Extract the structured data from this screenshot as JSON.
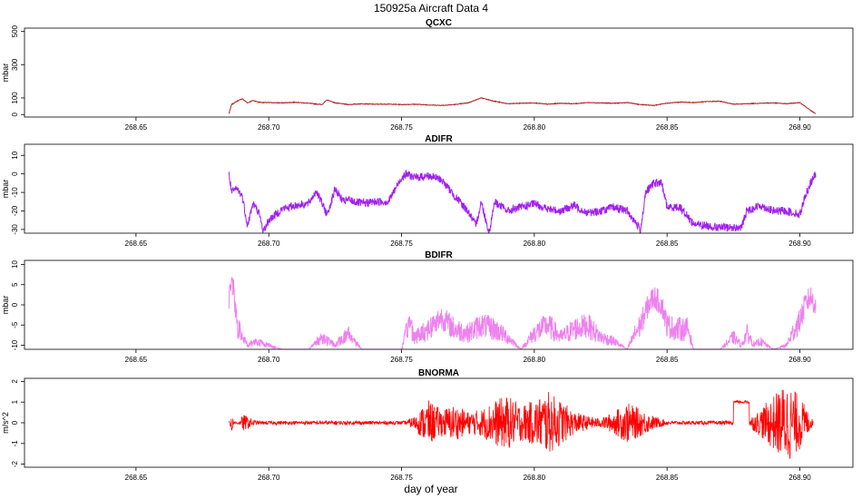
{
  "page_title": "150925a   Aircraft Data 4",
  "xlabel": "day of year",
  "x_ticks": [
    "268.65",
    "268.70",
    "268.75",
    "268.80",
    "268.85",
    "268.90"
  ],
  "chart_data": [
    {
      "type": "line",
      "title": "QCXC",
      "ylabel": "mbar",
      "xlim": [
        268.608,
        268.92
      ],
      "ylim": [
        -15,
        520
      ],
      "yticks": [
        "0",
        "100",
        "300",
        "500"
      ],
      "color": "#b22222",
      "series": [
        {
          "x": [
            268.685,
            268.686,
            268.688,
            268.69,
            268.692,
            268.694,
            268.696,
            268.698,
            268.7,
            268.705,
            268.71,
            268.715,
            268.72,
            268.722,
            268.725,
            268.73,
            268.735,
            268.74,
            268.745,
            268.75,
            268.755,
            268.76,
            268.765,
            268.77,
            268.775,
            268.78,
            268.785,
            268.79,
            268.795,
            268.8,
            268.805,
            268.81,
            268.815,
            268.82,
            268.825,
            268.83,
            268.835,
            268.84,
            268.845,
            268.85,
            268.855,
            268.86,
            268.865,
            268.87,
            268.875,
            268.88,
            268.885,
            268.89,
            268.895,
            268.9,
            268.902,
            268.904,
            268.906
          ],
          "y": [
            5,
            60,
            80,
            95,
            70,
            85,
            75,
            72,
            72,
            70,
            74,
            68,
            60,
            88,
            70,
            60,
            65,
            62,
            63,
            60,
            62,
            58,
            55,
            60,
            70,
            100,
            80,
            65,
            68,
            70,
            62,
            68,
            65,
            72,
            70,
            68,
            72,
            60,
            55,
            68,
            75,
            72,
            78,
            80,
            62,
            65,
            68,
            70,
            65,
            72,
            50,
            25,
            5
          ]
        }
      ]
    },
    {
      "type": "line",
      "title": "ADIFR",
      "ylabel": "mbar",
      "xlim": [
        268.608,
        268.92
      ],
      "ylim": [
        -32,
        16
      ],
      "yticks": [
        "-30",
        "-20",
        "-10",
        "0",
        "10"
      ],
      "color": "#a020f0",
      "series": [
        {
          "x": [
            268.685,
            268.686,
            268.688,
            268.69,
            268.692,
            268.694,
            268.696,
            268.698,
            268.7,
            268.705,
            268.71,
            268.715,
            268.718,
            268.72,
            268.722,
            268.725,
            268.728,
            268.73,
            268.735,
            268.74,
            268.745,
            268.75,
            268.752,
            268.755,
            268.76,
            268.765,
            268.77,
            268.775,
            268.778,
            268.78,
            268.783,
            268.785,
            268.79,
            268.795,
            268.8,
            268.805,
            268.81,
            268.815,
            268.82,
            268.825,
            268.83,
            268.835,
            268.84,
            268.842,
            268.845,
            268.848,
            268.85,
            268.855,
            268.86,
            268.865,
            268.87,
            268.875,
            268.878,
            268.88,
            268.885,
            268.89,
            268.895,
            268.9,
            268.902,
            268.904,
            268.906
          ],
          "y": [
            0,
            -10,
            -8,
            -12,
            -28,
            -16,
            -20,
            -31,
            -25,
            -19,
            -17,
            -16,
            -9,
            -16,
            -22,
            -8,
            -15,
            -14,
            -16,
            -15,
            -15,
            -2,
            0,
            -2,
            -1,
            -3,
            -12,
            -20,
            -28,
            -15,
            -32,
            -15,
            -20,
            -18,
            -16,
            -19,
            -20,
            -17,
            -21,
            -20,
            -18,
            -20,
            -30,
            -10,
            -5,
            -5,
            -18,
            -18,
            -27,
            -28,
            -29,
            -29,
            -29,
            -20,
            -17,
            -20,
            -20,
            -22,
            -12,
            -5,
            0
          ]
        }
      ]
    },
    {
      "type": "line",
      "title": "BDIFR",
      "ylabel": "mbar",
      "xlim": [
        268.608,
        268.92
      ],
      "ylim": [
        -11,
        11
      ],
      "yticks": [
        "-10",
        "-5",
        "0",
        "5",
        "10"
      ],
      "color": "#ee82ee",
      "series": [
        {
          "x": [
            268.685,
            268.686,
            268.688,
            268.69,
            268.692,
            268.695,
            268.7,
            268.705,
            268.715,
            268.72,
            268.725,
            268.73,
            268.735,
            268.74,
            268.745,
            268.75,
            268.753,
            268.755,
            268.76,
            268.765,
            268.77,
            268.775,
            268.78,
            268.785,
            268.79,
            268.795,
            268.8,
            268.805,
            268.81,
            268.815,
            268.82,
            268.825,
            268.83,
            268.835,
            268.838,
            268.84,
            268.843,
            268.845,
            268.848,
            268.85,
            268.853,
            268.855,
            268.858,
            268.86,
            268.865,
            268.87,
            268.875,
            268.878,
            268.88,
            268.883,
            268.885,
            268.89,
            268.895,
            268.898,
            268.9,
            268.902,
            268.904,
            268.906
          ],
          "y": [
            0,
            8,
            -5,
            -8,
            -10,
            -9,
            -10,
            -11,
            -11,
            -8,
            -10,
            -7,
            -11,
            -11,
            -11,
            -11,
            -4,
            -8,
            -6,
            -3,
            -6,
            -7,
            -5,
            -6,
            -8,
            -11,
            -7,
            -5,
            -8,
            -6,
            -5,
            -8,
            -9,
            -11,
            -7,
            -5,
            0,
            2,
            0,
            -5,
            -6,
            -6,
            -6,
            -11,
            -11,
            -11,
            -8,
            -10,
            -7,
            -10,
            -9,
            -11,
            -10,
            -6,
            -4,
            0,
            2,
            0
          ]
        }
      ]
    },
    {
      "type": "line",
      "title": "BNORMA",
      "ylabel": "m/s^2",
      "xlim": [
        268.608,
        268.92
      ],
      "ylim": [
        -2.15,
        2.15
      ],
      "yticks": [
        "-2",
        "-1",
        "0",
        "1",
        "2"
      ],
      "color": "#ff0000",
      "series": [
        {
          "x": [
            268.685,
            268.686,
            268.688,
            268.69,
            268.695,
            268.7,
            268.705,
            268.71,
            268.715,
            268.72,
            268.725,
            268.73,
            268.735,
            268.74,
            268.745,
            268.75,
            268.755,
            268.76,
            268.765,
            268.77,
            268.775,
            268.78,
            268.785,
            268.79,
            268.795,
            268.8,
            268.805,
            268.81,
            268.815,
            268.82,
            268.825,
            268.83,
            268.835,
            268.84,
            268.845,
            268.85,
            268.855,
            268.86,
            268.865,
            268.87,
            268.875,
            268.876,
            268.88,
            268.881,
            268.885,
            268.89,
            268.895,
            268.9,
            268.905
          ],
          "y": [
            0,
            0.3,
            -0.5,
            0.2,
            0.05,
            0,
            0,
            0,
            -0.05,
            0,
            0.05,
            0,
            0,
            0,
            0,
            0,
            0.15,
            0.5,
            0.3,
            0.4,
            0.25,
            0.3,
            0.5,
            0.6,
            0.4,
            0.5,
            0.7,
            0.5,
            0.25,
            0.15,
            0.1,
            0.25,
            0.45,
            0.3,
            0.15,
            0.05,
            0,
            0,
            0,
            0,
            0,
            1.0,
            1.0,
            0.1,
            0.3,
            0.6,
            0.9,
            0.6,
            0.05
          ]
        }
      ]
    }
  ]
}
